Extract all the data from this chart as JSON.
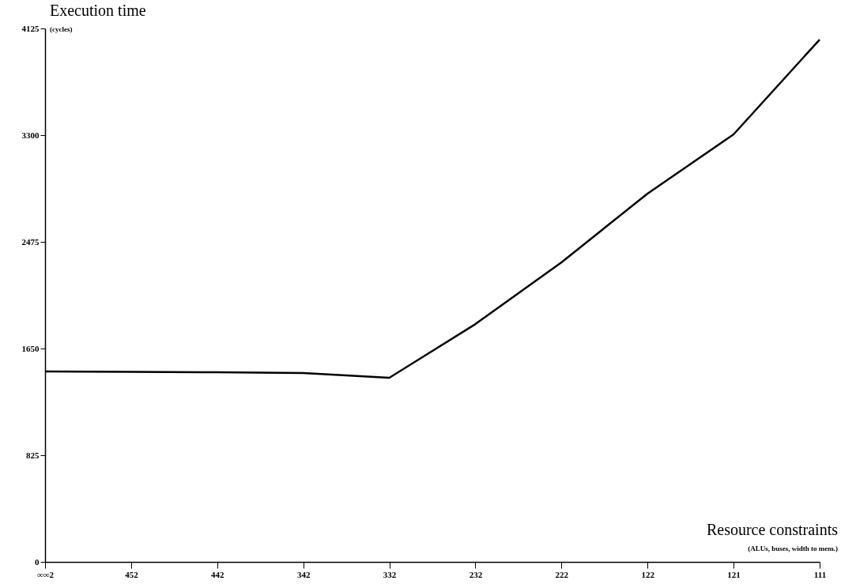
{
  "chart_data": {
    "type": "line",
    "xlabel": "Resource constraints\n(ALUs, buses, width to mem.)",
    "ylabel": "Execution time\n(cycles)",
    "categories": [
      "∞∞2",
      "452",
      "442",
      "342",
      "332",
      "232",
      "222",
      "122",
      "121",
      "111"
    ],
    "series": [
      {
        "color": "#000000",
        "values": [
          1473,
          1470,
          1466,
          1460,
          1424,
          1839,
          2316,
          2848,
          3306,
          4039
        ]
      }
    ],
    "ylim": [
      0,
      4125
    ],
    "yticks": [
      0,
      825,
      1650,
      2475,
      3300,
      4125
    ],
    "grid": false,
    "marker": "none",
    "line_style": "solid"
  }
}
